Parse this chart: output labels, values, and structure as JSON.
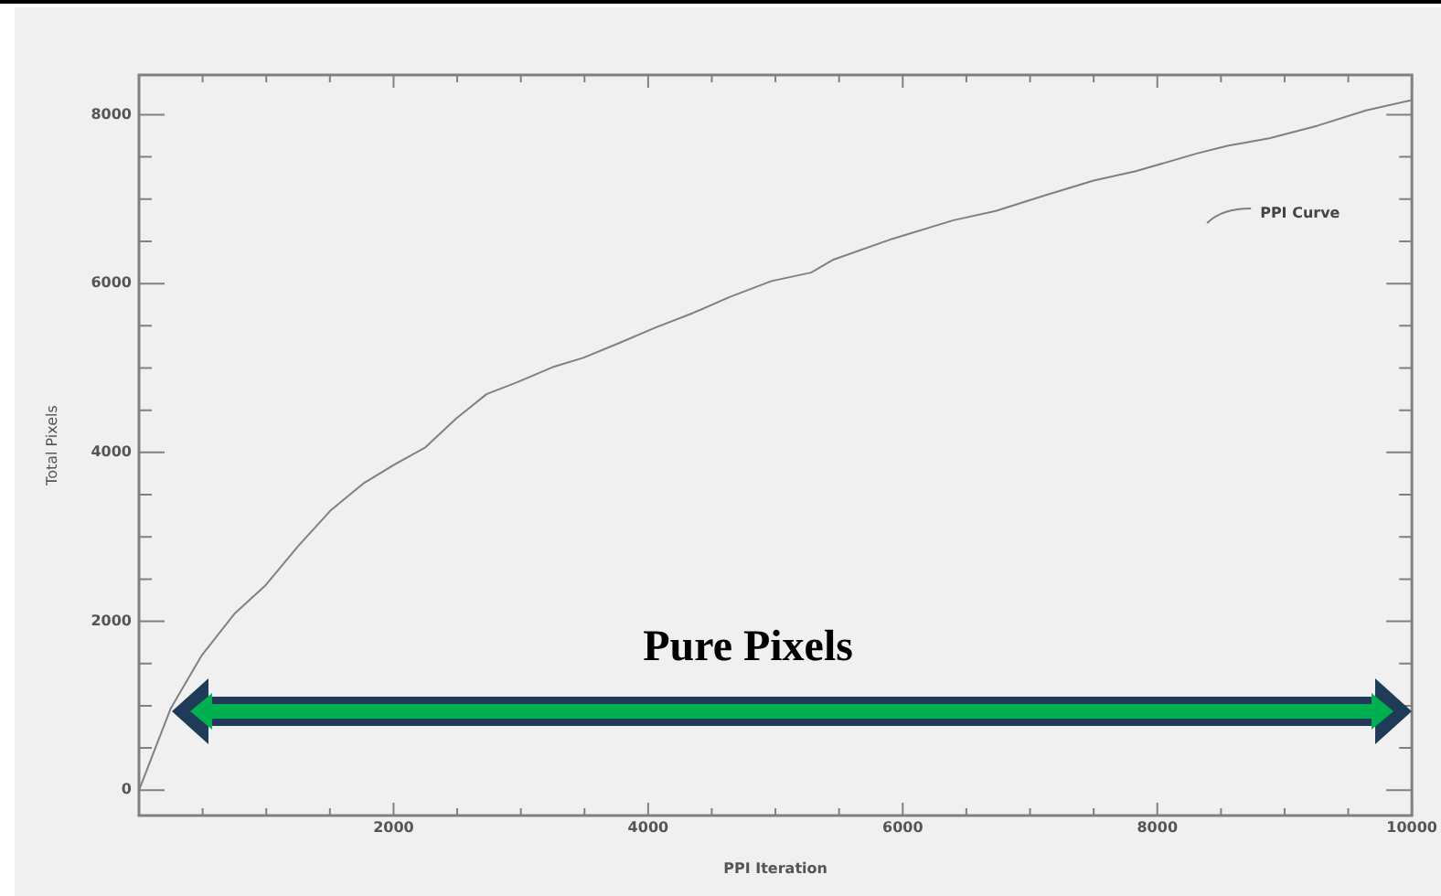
{
  "chart_data": {
    "type": "line",
    "xlabel": "PPI Iteration",
    "ylabel": "Total Pixels",
    "x": [
      0,
      250,
      490,
      750,
      990,
      1250,
      1510,
      1770,
      2010,
      2250,
      2490,
      2730,
      2970,
      3250,
      3490,
      3780,
      4060,
      4350,
      4640,
      4970,
      5280,
      5450,
      5920,
      6400,
      6730,
      7110,
      7500,
      7830,
      8310,
      8550,
      8880,
      9260,
      9640,
      9990
    ],
    "series": [
      {
        "name": "PPI Curve",
        "color": "#808080",
        "values": [
          0,
          970,
          1590,
          2090,
          2420,
          2890,
          3320,
          3640,
          3860,
          4060,
          4400,
          4690,
          4830,
          5010,
          5120,
          5300,
          5480,
          5650,
          5840,
          6030,
          6130,
          6280,
          6530,
          6750,
          6860,
          7040,
          7220,
          7330,
          7540,
          7630,
          7720,
          7870,
          8050,
          8170
        ]
      }
    ],
    "xlim": [
      0,
      10000
    ],
    "ylim": [
      -300,
      8470
    ],
    "xticks": [
      {
        "value": 500,
        "label": null
      },
      {
        "value": 1000,
        "label": null
      },
      {
        "value": 1500,
        "label": null
      },
      2000,
      {
        "value": 2500,
        "label": null
      },
      {
        "value": 3000,
        "label": null
      },
      {
        "value": 3500,
        "label": null
      },
      4000,
      {
        "value": 4500,
        "label": null
      },
      {
        "value": 5000,
        "label": null
      },
      {
        "value": 5500,
        "label": null
      },
      6000,
      {
        "value": 6500,
        "label": null
      },
      {
        "value": 7000,
        "label": null
      },
      {
        "value": 7500,
        "label": null
      },
      8000,
      {
        "value": 8500,
        "label": null
      },
      {
        "value": 9000,
        "label": null
      },
      {
        "value": 9500,
        "label": null
      },
      10000
    ],
    "yticks": [
      0,
      {
        "value": 500,
        "label": null
      },
      {
        "value": 1000,
        "label": null
      },
      {
        "value": 1500,
        "label": null
      },
      2000,
      {
        "value": 2500,
        "label": null
      },
      {
        "value": 3000,
        "label": null
      },
      {
        "value": 3500,
        "label": null
      },
      4000,
      {
        "value": 4500,
        "label": null
      },
      {
        "value": 5000,
        "label": null
      },
      {
        "value": 5500,
        "label": null
      },
      6000,
      {
        "value": 6500,
        "label": null
      },
      {
        "value": 7000,
        "label": null
      },
      {
        "value": 7500,
        "label": null
      },
      8000
    ],
    "legend": "top right",
    "marker": "none",
    "line_style": "solid",
    "annotations": [
      "Pure Pixels"
    ]
  }
}
